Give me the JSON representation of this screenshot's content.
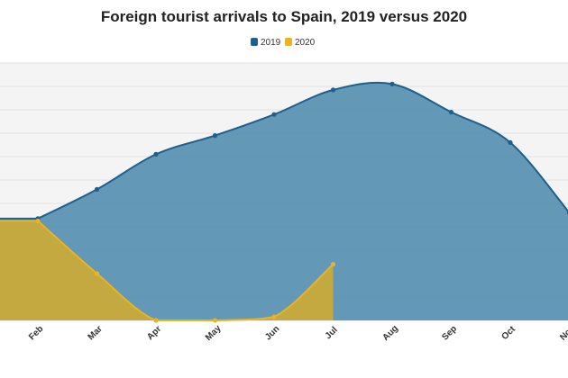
{
  "chart_data": {
    "type": "area",
    "title": "Foreign tourist arrivals to Spain, 2019 versus 2020",
    "categories": [
      "Feb",
      "Mar",
      "Apr",
      "May",
      "Jun",
      "Jul",
      "Aug",
      "Sep",
      "Oct",
      "Nov"
    ],
    "series": [
      {
        "name": "2019",
        "color": "#1f5f8b",
        "fill": "#5b92b2",
        "values": [
          4.35,
          5.6,
          7.1,
          7.9,
          8.8,
          9.85,
          10.1,
          8.9,
          7.6,
          4.6
        ]
      },
      {
        "name": "2020",
        "color": "#e8b422",
        "fill": "#c9a93a",
        "values": [
          4.25,
          2.0,
          0,
          0,
          0.15,
          2.4,
          null,
          null,
          null,
          null
        ]
      }
    ],
    "ylim": [
      0,
      11
    ],
    "yticks": [
      0,
      1,
      2,
      3,
      4,
      5,
      6,
      7,
      8,
      9,
      10,
      11
    ],
    "grid": true,
    "legend": "top"
  }
}
